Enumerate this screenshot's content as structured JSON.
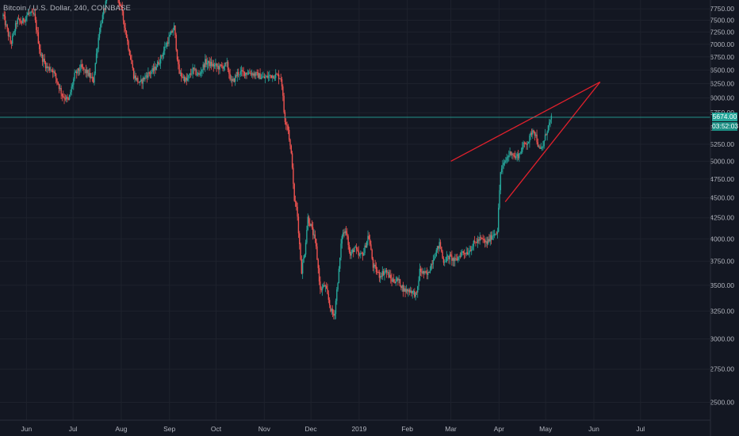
{
  "header": {
    "title": "Bitcoin / U.S. Dollar, 240, COINBASE"
  },
  "colors": {
    "background": "#131722",
    "grid": "#1e222d",
    "axis_text": "#b2b5be",
    "candle_up": "#26a69a",
    "candle_down": "#ef5350",
    "wedge_lines": "#e0202c",
    "price_line": "#26a69a"
  },
  "current_price": {
    "label": "5674.00",
    "timer": "03:52:03",
    "value": 5674
  },
  "chart_data": {
    "type": "candlestick",
    "title": "Bitcoin / U.S. Dollar, 240, COINBASE",
    "ylim": [
      2375,
      7950
    ],
    "y_scale": "log",
    "grid": true,
    "y_ticks": [
      7750,
      7500,
      7250,
      7000,
      6750,
      6500,
      6250,
      6000,
      5750,
      5500,
      5250,
      5000,
      4750,
      4500,
      4250,
      4000,
      3750,
      3500,
      3250,
      3000,
      2750,
      2500
    ],
    "y_tick_labels": [
      "7750.00",
      "7500.00",
      "7250.00",
      "7000.00",
      "6750.00",
      "6500.00",
      "6250.00",
      "6000.00",
      "5750.00",
      "5500.00",
      "5250.00",
      "5000.00",
      "4750.00",
      "4500.00",
      "4250.00",
      "4000.00",
      "3750.00",
      "3500.00",
      "3250.00",
      "3000.00",
      "2750.00",
      "2500.00"
    ],
    "x_ticks": [
      {
        "label": "Jun",
        "date": "2018-06-01"
      },
      {
        "label": "Jul",
        "date": "2018-07-01"
      },
      {
        "label": "Aug",
        "date": "2018-08-01"
      },
      {
        "label": "Sep",
        "date": "2018-09-01"
      },
      {
        "label": "Oct",
        "date": "2018-10-01"
      },
      {
        "label": "Nov",
        "date": "2018-11-01"
      },
      {
        "label": "Dec",
        "date": "2018-12-01"
      },
      {
        "label": "2019",
        "date": "2019-01-01"
      },
      {
        "label": "Feb",
        "date": "2019-02-01"
      },
      {
        "label": "Mar",
        "date": "2019-03-01"
      },
      {
        "label": "Apr",
        "date": "2019-04-01"
      },
      {
        "label": "May",
        "date": "2019-05-01"
      },
      {
        "label": "Jun",
        "date": "2019-06-01"
      },
      {
        "label": "Jul",
        "date": "2019-07-01"
      }
    ],
    "x_range": [
      "2018-05-15",
      "2019-08-15"
    ],
    "series": [
      {
        "kind": "close_path",
        "points": [
          [
            "2018-05-17",
            7600
          ],
          [
            "2018-05-22",
            7000
          ],
          [
            "2018-05-26",
            7500
          ],
          [
            "2018-05-29",
            7450
          ],
          [
            "2018-06-02",
            7650
          ],
          [
            "2018-06-06",
            7600
          ],
          [
            "2018-06-10",
            6800
          ],
          [
            "2018-06-14",
            6550
          ],
          [
            "2018-06-18",
            6500
          ],
          [
            "2018-06-22",
            6200
          ],
          [
            "2018-06-24",
            6050
          ],
          [
            "2018-06-28",
            5950
          ],
          [
            "2018-07-02",
            6400
          ],
          [
            "2018-07-06",
            6550
          ],
          [
            "2018-07-10",
            6450
          ],
          [
            "2018-07-14",
            6300
          ],
          [
            "2018-07-18",
            7300
          ],
          [
            "2018-07-24",
            8150
          ],
          [
            "2018-07-28",
            8200
          ],
          [
            "2018-08-01",
            7750
          ],
          [
            "2018-08-05",
            7050
          ],
          [
            "2018-08-09",
            6400
          ],
          [
            "2018-08-13",
            6250
          ],
          [
            "2018-08-17",
            6400
          ],
          [
            "2018-08-22",
            6500
          ],
          [
            "2018-08-26",
            6700
          ],
          [
            "2018-08-30",
            7000
          ],
          [
            "2018-09-04",
            7350
          ],
          [
            "2018-09-07",
            6450
          ],
          [
            "2018-09-12",
            6300
          ],
          [
            "2018-09-16",
            6500
          ],
          [
            "2018-09-20",
            6400
          ],
          [
            "2018-09-24",
            6650
          ],
          [
            "2018-09-28",
            6600
          ],
          [
            "2018-10-03",
            6550
          ],
          [
            "2018-10-08",
            6600
          ],
          [
            "2018-10-11",
            6250
          ],
          [
            "2018-10-15",
            6450
          ],
          [
            "2018-10-19",
            6450
          ],
          [
            "2018-10-23",
            6450
          ],
          [
            "2018-10-28",
            6400
          ],
          [
            "2018-11-01",
            6350
          ],
          [
            "2018-11-05",
            6400
          ],
          [
            "2018-11-09",
            6400
          ],
          [
            "2018-11-12",
            6350
          ],
          [
            "2018-11-14",
            5650
          ],
          [
            "2018-11-16",
            5550
          ],
          [
            "2018-11-19",
            4950
          ],
          [
            "2018-11-20",
            4500
          ],
          [
            "2018-11-22",
            4350
          ],
          [
            "2018-11-24",
            3850
          ],
          [
            "2018-11-25",
            3650
          ],
          [
            "2018-11-27",
            3850
          ],
          [
            "2018-11-29",
            4250
          ],
          [
            "2018-12-01",
            4150
          ],
          [
            "2018-12-04",
            3950
          ],
          [
            "2018-12-07",
            3450
          ],
          [
            "2018-12-10",
            3500
          ],
          [
            "2018-12-14",
            3250
          ],
          [
            "2018-12-16",
            3200
          ],
          [
            "2018-12-19",
            3650
          ],
          [
            "2018-12-21",
            4050
          ],
          [
            "2018-12-24",
            4100
          ],
          [
            "2018-12-26",
            3800
          ],
          [
            "2018-12-29",
            3900
          ],
          [
            "2019-01-01",
            3800
          ],
          [
            "2019-01-04",
            3850
          ],
          [
            "2019-01-07",
            4050
          ],
          [
            "2019-01-10",
            3700
          ],
          [
            "2019-01-14",
            3600
          ],
          [
            "2019-01-18",
            3650
          ],
          [
            "2019-01-22",
            3550
          ],
          [
            "2019-01-26",
            3550
          ],
          [
            "2019-01-30",
            3450
          ],
          [
            "2019-02-03",
            3450
          ],
          [
            "2019-02-07",
            3400
          ],
          [
            "2019-02-09",
            3650
          ],
          [
            "2019-02-14",
            3600
          ],
          [
            "2019-02-18",
            3800
          ],
          [
            "2019-02-22",
            3950
          ],
          [
            "2019-02-24",
            3750
          ],
          [
            "2019-02-28",
            3800
          ],
          [
            "2019-03-04",
            3750
          ],
          [
            "2019-03-08",
            3850
          ],
          [
            "2019-03-12",
            3850
          ],
          [
            "2019-03-16",
            3950
          ],
          [
            "2019-03-20",
            4000
          ],
          [
            "2019-03-24",
            3950
          ],
          [
            "2019-03-28",
            4050
          ],
          [
            "2019-03-31",
            4100
          ],
          [
            "2019-04-02",
            4850
          ],
          [
            "2019-04-04",
            4950
          ],
          [
            "2019-04-06",
            5050
          ],
          [
            "2019-04-09",
            5150
          ],
          [
            "2019-04-11",
            5050
          ],
          [
            "2019-04-14",
            5100
          ],
          [
            "2019-04-17",
            5250
          ],
          [
            "2019-04-20",
            5300
          ],
          [
            "2019-04-23",
            5500
          ],
          [
            "2019-04-25",
            5350
          ],
          [
            "2019-04-27",
            5150
          ],
          [
            "2019-04-29",
            5200
          ],
          [
            "2019-05-01",
            5400
          ],
          [
            "2019-05-03",
            5550
          ],
          [
            "2019-05-05",
            5674
          ]
        ]
      }
    ],
    "annotations": [
      {
        "kind": "trendline",
        "color": "#e0202c",
        "from": [
          "2019-03-01",
          5000
        ],
        "to": [
          "2019-06-05",
          6280
        ]
      },
      {
        "kind": "trendline",
        "color": "#e0202c",
        "from": [
          "2019-04-05",
          4450
        ],
        "to": [
          "2019-06-05",
          6280
        ]
      },
      {
        "kind": "horizontal_line",
        "color": "#26a69a",
        "value": 5674
      }
    ]
  }
}
